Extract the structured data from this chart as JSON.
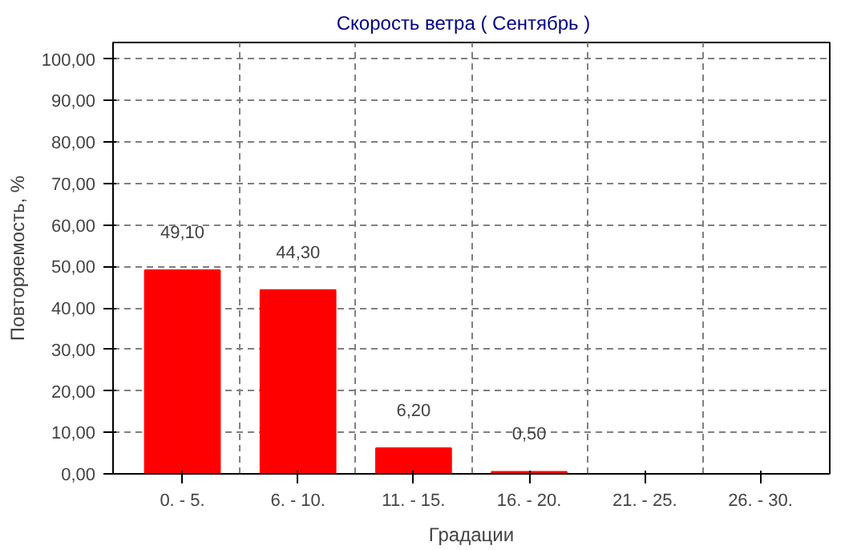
{
  "chart_data": {
    "type": "bar",
    "title": "Скорость ветра    ( Сентябрь )",
    "xlabel": "Градации",
    "ylabel": "Повторяемость, %",
    "categories": [
      "0. - 5.",
      "6. - 10.",
      "11. - 15.",
      "16. - 20.",
      "21. - 25.",
      "26. - 30."
    ],
    "values": [
      49.1,
      44.3,
      6.2,
      0.5,
      0,
      0
    ],
    "color": "#ff0000",
    "value_labels": [
      "49,10",
      "44,30",
      "6,20",
      "0,50",
      null,
      null
    ],
    "ylim": [
      0,
      104
    ],
    "yticks": [
      {
        "value": 0,
        "label": "0,00"
      },
      {
        "value": 10,
        "label": "10,00"
      },
      {
        "value": 20,
        "label": "20,00"
      },
      {
        "value": 30,
        "label": "30,00"
      },
      {
        "value": 40,
        "label": "40,00"
      },
      {
        "value": 50,
        "label": "50,00"
      },
      {
        "value": 60,
        "label": "60,00"
      },
      {
        "value": 70,
        "label": "70,00"
      },
      {
        "value": 80,
        "label": "80,00"
      },
      {
        "value": 90,
        "label": "90,00"
      },
      {
        "value": 100,
        "label": "100,00"
      }
    ],
    "grid": true
  }
}
